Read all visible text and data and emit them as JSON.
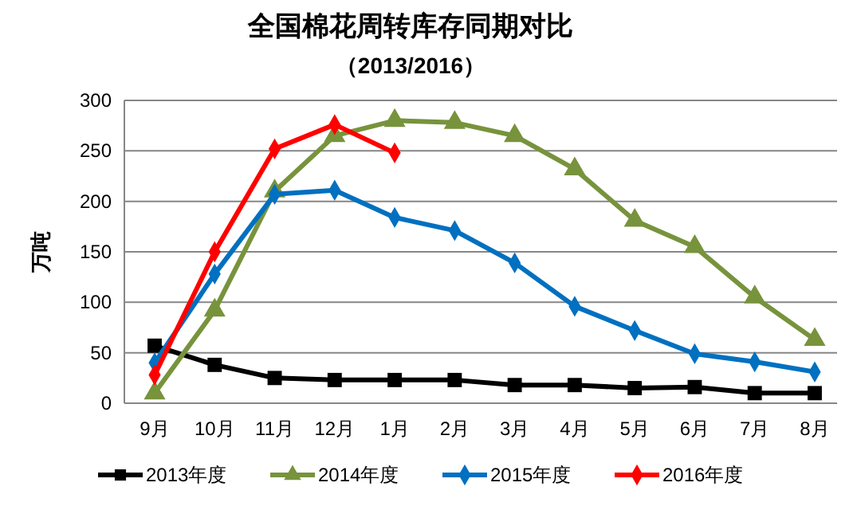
{
  "chart_data": {
    "type": "line",
    "title": "全国棉花周转库存同期对比",
    "subtitle": "（2013/2016）",
    "ylabel": "万吨",
    "categories": [
      "9月",
      "10月",
      "11月",
      "12月",
      "1月",
      "2月",
      "3月",
      "4月",
      "5月",
      "6月",
      "7月",
      "8月"
    ],
    "series": [
      {
        "name": "2013年度",
        "color": "#000000",
        "marker": "square",
        "values": [
          57,
          38,
          25,
          23,
          23,
          23,
          18,
          18,
          15,
          16,
          10,
          10
        ]
      },
      {
        "name": "2014年度",
        "color": "#77933c",
        "marker": "triangle",
        "values": [
          10,
          92,
          210,
          265,
          280,
          278,
          265,
          232,
          181,
          155,
          105,
          63
        ]
      },
      {
        "name": "2015年度",
        "color": "#0070c0",
        "marker": "diamond",
        "values": [
          40,
          128,
          207,
          211,
          184,
          171,
          139,
          96,
          72,
          49,
          41,
          31
        ]
      },
      {
        "name": "2016年度",
        "color": "#ff0000",
        "marker": "diamond",
        "values": [
          28,
          150,
          252,
          276,
          248,
          null,
          null,
          null,
          null,
          null,
          null,
          null
        ]
      }
    ],
    "ylim": [
      0,
      300
    ],
    "yticks": [
      0,
      50,
      100,
      150,
      200,
      250,
      300
    ],
    "grid": "y",
    "legend": "bottom"
  }
}
